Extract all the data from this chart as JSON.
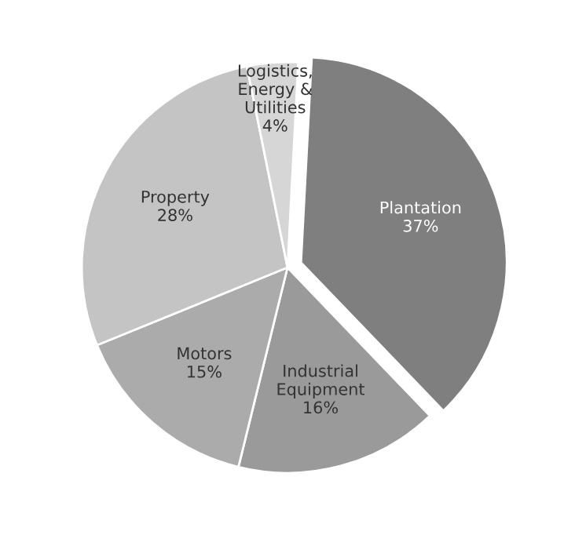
{
  "chart_data": {
    "type": "pie",
    "categories": [
      "Plantation",
      "Industrial\nEquipment",
      "Motors",
      "Property",
      "Logistics,\nEnergy &\nUtilities"
    ],
    "values": [
      37,
      16,
      15,
      28,
      4
    ],
    "value_labels": [
      "37%",
      "16%",
      "15%",
      "28%",
      "4%"
    ],
    "colors": [
      "#7f7f7f",
      "#9a9a9a",
      "#ababab",
      "#c4c4c4",
      "#d6d6d6"
    ],
    "legend": false
  }
}
